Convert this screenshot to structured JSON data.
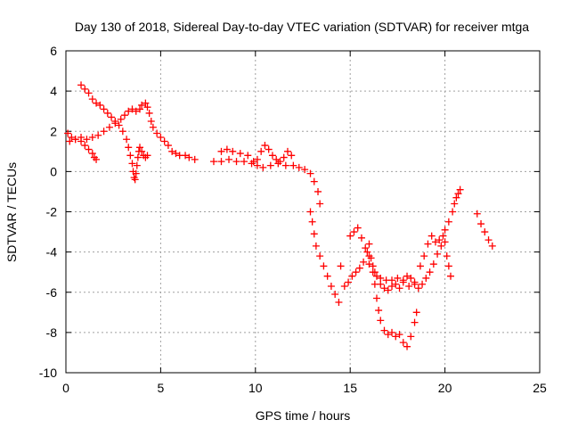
{
  "chart_data": {
    "type": "scatter",
    "title": "Day 130 of 2018, Sidereal Day-to-day VTEC variation (SDTVAR) for receiver mtga",
    "xlabel": "GPS time / hours",
    "ylabel": "SDTVAR / TECUs",
    "xlim": [
      0,
      25
    ],
    "ylim": [
      -10,
      6
    ],
    "x_ticks": [
      0,
      5,
      10,
      15,
      20,
      25
    ],
    "y_ticks": [
      -10,
      -8,
      -6,
      -4,
      -2,
      0,
      2,
      4,
      6
    ],
    "grid": true,
    "marker": "plus",
    "color": "#ff0000",
    "series": [
      {
        "points": [
          [
            0.1,
            1.9
          ],
          [
            0.3,
            1.7
          ],
          [
            0.5,
            1.6
          ],
          [
            0.8,
            1.5
          ],
          [
            1.0,
            1.3
          ],
          [
            1.2,
            1.1
          ],
          [
            1.4,
            0.9
          ],
          [
            1.5,
            0.7
          ],
          [
            1.6,
            0.6
          ],
          [
            0.2,
            1.5
          ],
          [
            0.5,
            1.6
          ],
          [
            0.8,
            1.7
          ],
          [
            1.1,
            1.6
          ],
          [
            1.4,
            1.7
          ],
          [
            1.7,
            1.8
          ],
          [
            2.0,
            2.0
          ],
          [
            2.3,
            2.2
          ],
          [
            2.6,
            2.4
          ],
          [
            2.9,
            2.6
          ],
          [
            3.1,
            2.8
          ],
          [
            3.3,
            3.0
          ],
          [
            3.5,
            3.1
          ],
          [
            3.7,
            3.0
          ],
          [
            3.9,
            3.1
          ],
          [
            4.0,
            3.3
          ],
          [
            4.2,
            3.4
          ],
          [
            4.3,
            3.2
          ],
          [
            4.4,
            2.9
          ],
          [
            4.5,
            2.5
          ],
          [
            4.6,
            2.2
          ],
          [
            4.8,
            1.9
          ],
          [
            5.0,
            1.7
          ],
          [
            5.2,
            1.5
          ],
          [
            5.4,
            1.3
          ],
          [
            5.6,
            1.0
          ],
          [
            5.8,
            0.9
          ],
          [
            6.0,
            0.8
          ],
          [
            6.3,
            0.8
          ],
          [
            6.5,
            0.7
          ],
          [
            6.8,
            0.6
          ],
          [
            0.8,
            4.3
          ],
          [
            1.0,
            4.1
          ],
          [
            1.2,
            3.9
          ],
          [
            1.4,
            3.6
          ],
          [
            1.6,
            3.4
          ],
          [
            1.8,
            3.3
          ],
          [
            2.0,
            3.1
          ],
          [
            2.2,
            2.9
          ],
          [
            2.4,
            2.7
          ],
          [
            2.6,
            2.5
          ],
          [
            2.8,
            2.3
          ],
          [
            3.0,
            2.0
          ],
          [
            3.2,
            1.6
          ],
          [
            3.3,
            1.2
          ],
          [
            3.4,
            0.8
          ],
          [
            3.5,
            0.4
          ],
          [
            3.55,
            0.0
          ],
          [
            3.6,
            -0.3
          ],
          [
            3.65,
            -0.4
          ],
          [
            3.7,
            -0.1
          ],
          [
            3.75,
            0.3
          ],
          [
            3.8,
            0.7
          ],
          [
            3.85,
            1.0
          ],
          [
            3.9,
            1.2
          ],
          [
            4.0,
            1.0
          ],
          [
            4.1,
            0.8
          ],
          [
            4.2,
            0.7
          ],
          [
            4.3,
            0.8
          ],
          [
            7.8,
            0.5
          ],
          [
            8.2,
            0.5
          ],
          [
            8.6,
            0.6
          ],
          [
            9.0,
            0.5
          ],
          [
            9.4,
            0.5
          ],
          [
            9.8,
            0.4
          ],
          [
            10.1,
            0.3
          ],
          [
            10.4,
            0.2
          ],
          [
            10.8,
            0.3
          ],
          [
            11.2,
            0.4
          ],
          [
            11.6,
            0.3
          ],
          [
            12.0,
            0.3
          ],
          [
            12.3,
            0.2
          ],
          [
            12.6,
            0.1
          ],
          [
            12.9,
            -0.1
          ],
          [
            13.1,
            -0.5
          ],
          [
            13.3,
            -1.0
          ],
          [
            13.4,
            -1.6
          ],
          [
            8.2,
            1.0
          ],
          [
            8.5,
            1.1
          ],
          [
            8.8,
            1.0
          ],
          [
            9.2,
            0.9
          ],
          [
            9.6,
            0.8
          ],
          [
            9.9,
            0.5
          ],
          [
            10.1,
            0.6
          ],
          [
            10.3,
            1.0
          ],
          [
            10.5,
            1.3
          ],
          [
            10.7,
            1.1
          ],
          [
            10.9,
            0.8
          ],
          [
            11.1,
            0.6
          ],
          [
            11.3,
            0.5
          ],
          [
            11.5,
            0.7
          ],
          [
            11.7,
            1.0
          ],
          [
            11.9,
            0.8
          ],
          [
            12.9,
            -2.0
          ],
          [
            13.0,
            -2.5
          ],
          [
            13.1,
            -3.1
          ],
          [
            13.2,
            -3.7
          ],
          [
            13.4,
            -4.2
          ],
          [
            13.6,
            -4.7
          ],
          [
            13.8,
            -5.2
          ],
          [
            14.0,
            -5.7
          ],
          [
            14.2,
            -6.1
          ],
          [
            14.4,
            -6.5
          ],
          [
            14.5,
            -4.7
          ],
          [
            14.7,
            -5.7
          ],
          [
            14.9,
            -5.5
          ],
          [
            15.1,
            -5.2
          ],
          [
            15.3,
            -5.0
          ],
          [
            15.5,
            -4.8
          ],
          [
            15.7,
            -4.5
          ],
          [
            15.9,
            -4.0
          ],
          [
            16.0,
            -3.6
          ],
          [
            16.1,
            -4.3
          ],
          [
            16.2,
            -5.0
          ],
          [
            16.3,
            -5.6
          ],
          [
            16.4,
            -6.3
          ],
          [
            16.5,
            -6.9
          ],
          [
            16.6,
            -7.4
          ],
          [
            16.8,
            -7.9
          ],
          [
            17.0,
            -8.1
          ],
          [
            17.2,
            -8.0
          ],
          [
            17.4,
            -8.2
          ],
          [
            17.6,
            -8.1
          ],
          [
            17.8,
            -8.5
          ],
          [
            18.0,
            -8.7
          ],
          [
            18.2,
            -8.2
          ],
          [
            18.4,
            -7.5
          ],
          [
            18.5,
            -7.0
          ],
          [
            15.0,
            -3.2
          ],
          [
            15.2,
            -3.0
          ],
          [
            15.4,
            -2.8
          ],
          [
            15.6,
            -3.3
          ],
          [
            15.8,
            -3.8
          ],
          [
            16.0,
            -4.2
          ],
          [
            16.2,
            -4.7
          ],
          [
            16.4,
            -5.2
          ],
          [
            16.6,
            -5.6
          ],
          [
            16.8,
            -5.8
          ],
          [
            17.0,
            -5.9
          ],
          [
            17.2,
            -5.7
          ],
          [
            17.4,
            -5.6
          ],
          [
            17.6,
            -5.8
          ],
          [
            17.8,
            -5.5
          ],
          [
            18.0,
            -5.2
          ],
          [
            18.2,
            -5.3
          ],
          [
            18.4,
            -5.6
          ],
          [
            18.6,
            -5.8
          ],
          [
            18.8,
            -5.6
          ],
          [
            19.0,
            -5.3
          ],
          [
            19.2,
            -5.0
          ],
          [
            19.4,
            -4.6
          ],
          [
            19.6,
            -4.1
          ],
          [
            19.8,
            -3.7
          ],
          [
            20.0,
            -3.5
          ],
          [
            20.1,
            -4.2
          ],
          [
            20.2,
            -4.7
          ],
          [
            20.3,
            -5.2
          ],
          [
            16.0,
            -4.6
          ],
          [
            16.3,
            -5.0
          ],
          [
            16.6,
            -5.3
          ],
          [
            16.9,
            -5.4
          ],
          [
            17.2,
            -5.4
          ],
          [
            17.5,
            -5.3
          ],
          [
            17.8,
            -5.4
          ],
          [
            18.1,
            -5.7
          ],
          [
            18.4,
            -5.5
          ],
          [
            18.7,
            -4.7
          ],
          [
            18.9,
            -4.2
          ],
          [
            19.1,
            -3.6
          ],
          [
            19.3,
            -3.2
          ],
          [
            19.5,
            -3.5
          ],
          [
            19.7,
            -3.4
          ],
          [
            19.9,
            -3.2
          ],
          [
            20.0,
            -2.9
          ],
          [
            20.2,
            -2.5
          ],
          [
            20.4,
            -2.0
          ],
          [
            20.5,
            -1.6
          ],
          [
            20.6,
            -1.3
          ],
          [
            20.7,
            -1.1
          ],
          [
            20.8,
            -0.9
          ],
          [
            21.7,
            -2.1
          ],
          [
            21.9,
            -2.6
          ],
          [
            22.1,
            -3.0
          ],
          [
            22.3,
            -3.4
          ],
          [
            22.5,
            -3.7
          ]
        ]
      }
    ]
  }
}
